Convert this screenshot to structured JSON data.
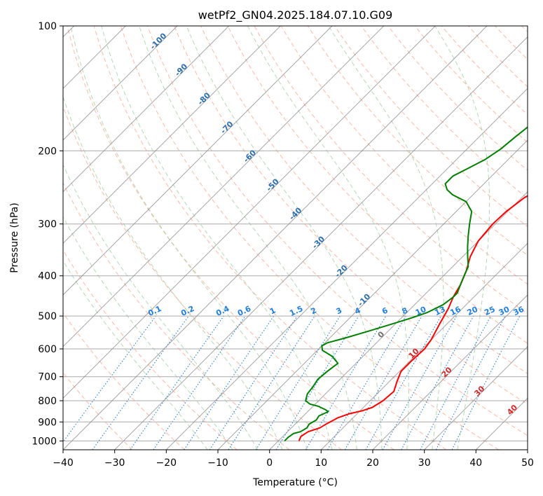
{
  "chart_data": {
    "type": "line",
    "title": "wetPf2_GN04.2025.184.07.10.G09",
    "xlabel": "Temperature (°C)",
    "ylabel": "Pressure (hPa)",
    "xlim": [
      -40,
      50
    ],
    "ylim": [
      1050,
      100
    ],
    "y_scale": "log",
    "grid": true,
    "x_ticks": [
      -40,
      -30,
      -20,
      -10,
      0,
      10,
      20,
      30,
      40,
      50
    ],
    "y_ticks": [
      1000,
      900,
      800,
      700,
      600,
      500,
      400,
      300,
      200,
      100
    ],
    "series": [
      {
        "color": "#ff0000",
        "points": [
          [
            4,
            1000
          ],
          [
            3.5,
            975
          ],
          [
            4,
            950
          ],
          [
            5.5,
            930
          ],
          [
            6,
            910
          ],
          [
            7,
            880
          ],
          [
            8.5,
            860
          ],
          [
            10.5,
            845
          ],
          [
            11.7,
            830
          ],
          [
            12.5,
            800
          ],
          [
            12.8,
            760
          ],
          [
            11.5,
            720
          ],
          [
            10.3,
            680
          ],
          [
            10.3,
            640
          ],
          [
            10.5,
            600
          ],
          [
            10,
            570
          ],
          [
            8.5,
            520
          ],
          [
            7.3,
            480
          ],
          [
            6,
            450
          ],
          [
            5,
            420
          ],
          [
            3.5,
            390
          ],
          [
            1.5,
            360
          ],
          [
            0,
            330
          ],
          [
            -0.5,
            300
          ],
          [
            -0.3,
            280
          ],
          [
            0.5,
            260
          ],
          [
            2.5,
            240
          ],
          [
            5,
            225
          ],
          [
            8,
            210
          ],
          [
            10,
            200
          ],
          [
            12,
            185
          ],
          [
            15,
            170
          ],
          [
            18,
            155
          ],
          [
            21,
            142
          ],
          [
            24,
            130
          ],
          [
            27,
            120
          ],
          [
            31,
            111
          ],
          [
            34.5,
            103
          ],
          [
            36,
            100
          ]
        ]
      },
      {
        "color": "#008000",
        "points": [
          [
            1.2,
            1000
          ],
          [
            1.2,
            980
          ],
          [
            1.5,
            960
          ],
          [
            2.5,
            950
          ],
          [
            3,
            930
          ],
          [
            2.7,
            910
          ],
          [
            3.3,
            890
          ],
          [
            3,
            870
          ],
          [
            4,
            850
          ],
          [
            3,
            840
          ],
          [
            1,
            825
          ],
          [
            -1,
            815
          ],
          [
            -2.5,
            800
          ],
          [
            -3.5,
            770
          ],
          [
            -3.8,
            740
          ],
          [
            -4.3,
            710
          ],
          [
            -4,
            680
          ],
          [
            -3.5,
            650
          ],
          [
            -6,
            625
          ],
          [
            -9,
            605
          ],
          [
            -10,
            590
          ],
          [
            -9.5,
            580
          ],
          [
            -7,
            565
          ],
          [
            -4,
            545
          ],
          [
            -1,
            525
          ],
          [
            2,
            505
          ],
          [
            4,
            490
          ],
          [
            5.5,
            470
          ],
          [
            6,
            450
          ],
          [
            6,
            440
          ],
          [
            5.5,
            430
          ],
          [
            4.5,
            410
          ],
          [
            4,
            400
          ],
          [
            3,
            380
          ],
          [
            1,
            360
          ],
          [
            -1,
            340
          ],
          [
            -3,
            320
          ],
          [
            -5,
            300
          ],
          [
            -7,
            280
          ],
          [
            -10,
            265
          ],
          [
            -14,
            255
          ],
          [
            -16,
            248
          ],
          [
            -17.5,
            240
          ],
          [
            -17.5,
            230
          ],
          [
            -16,
            220
          ],
          [
            -14.5,
            210
          ],
          [
            -13.5,
            198
          ],
          [
            -13,
            185
          ],
          [
            -12.5,
            175
          ],
          [
            -12,
            162
          ],
          [
            -12.2,
            155
          ],
          [
            -11.8,
            148
          ],
          [
            -10,
            140
          ],
          [
            -8,
            130
          ],
          [
            -6,
            122
          ],
          [
            -4,
            115
          ],
          [
            -2.5,
            108
          ],
          [
            -1.2,
            102
          ],
          [
            -0.6,
            100
          ]
        ]
      }
    ],
    "dry_adiabat_labels": [
      "-100",
      "-90",
      "-80",
      "-70",
      "-60",
      "-50",
      "-40",
      "-30",
      "-20",
      "-10"
    ],
    "mixing_ratio_labels": [
      "0.1",
      "0.2",
      "0.4",
      "0.6",
      "1",
      "1.5",
      "2",
      "3",
      "4",
      "6",
      "8",
      "10",
      "13",
      "16",
      "20",
      "25",
      "30",
      "36"
    ],
    "moist_adiabat_labels": [
      "0",
      "10",
      "20",
      "30",
      "40"
    ]
  },
  "colors": {
    "temperature": "#ff0000",
    "dewpoint": "#008000",
    "dry_adiabat": "#ff9a7a",
    "moist_adiabat": "#9fcf9f",
    "mixing_ratio": "#1f7fe0",
    "isotherm": "#888888",
    "isobar": "#aaaaaa",
    "dry_label": "#2c6fb0",
    "moist_label": "#d62728",
    "zero_label": "#707070"
  }
}
